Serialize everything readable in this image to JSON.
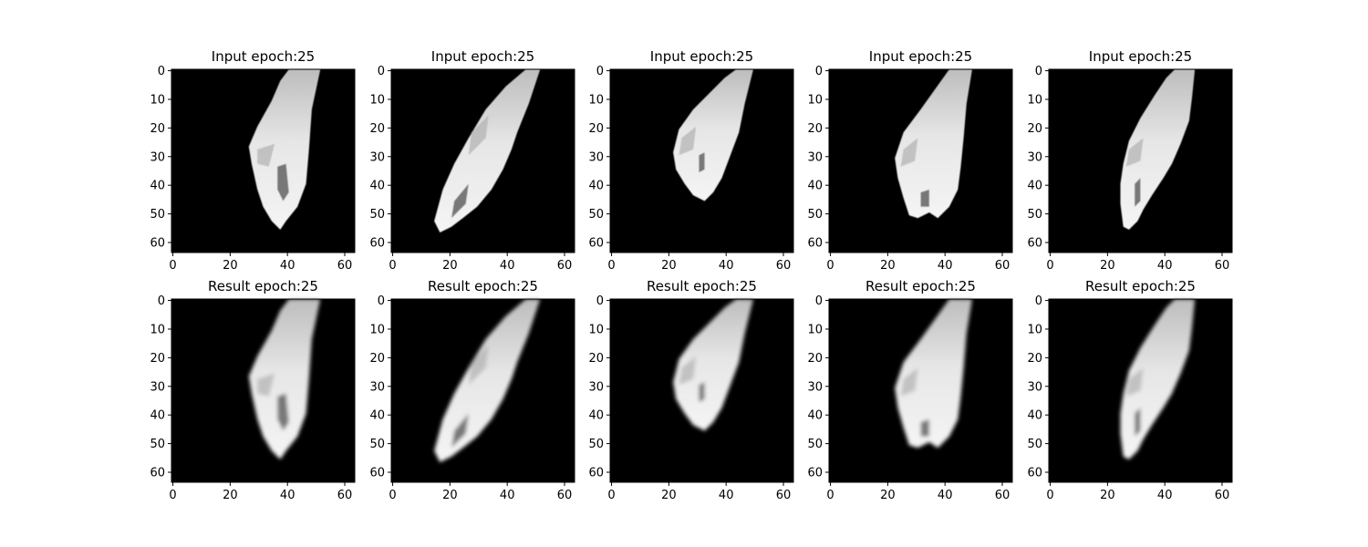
{
  "chart_data": [
    {
      "type": "image",
      "title": "Input epoch:25",
      "row": "input",
      "xlim": [
        0,
        63
      ],
      "ylim": [
        63,
        0
      ],
      "xticks": [
        0,
        20,
        40,
        60
      ],
      "yticks": [
        0,
        10,
        20,
        30,
        40,
        50,
        60
      ],
      "colormap": "gray",
      "subject": "hand"
    },
    {
      "type": "image",
      "title": "Input epoch:25",
      "row": "input",
      "xlim": [
        0,
        63
      ],
      "ylim": [
        63,
        0
      ],
      "xticks": [
        0,
        20,
        40,
        60
      ],
      "yticks": [
        0,
        10,
        20,
        30,
        40,
        50,
        60
      ],
      "colormap": "gray",
      "subject": "hand"
    },
    {
      "type": "image",
      "title": "Input epoch:25",
      "row": "input",
      "xlim": [
        0,
        63
      ],
      "ylim": [
        63,
        0
      ],
      "xticks": [
        0,
        20,
        40,
        60
      ],
      "yticks": [
        0,
        10,
        20,
        30,
        40,
        50,
        60
      ],
      "colormap": "gray",
      "subject": "hand"
    },
    {
      "type": "image",
      "title": "Input epoch:25",
      "row": "input",
      "xlim": [
        0,
        63
      ],
      "ylim": [
        63,
        0
      ],
      "xticks": [
        0,
        20,
        40,
        60
      ],
      "yticks": [
        0,
        10,
        20,
        30,
        40,
        50,
        60
      ],
      "colormap": "gray",
      "subject": "hand"
    },
    {
      "type": "image",
      "title": "Input epoch:25",
      "row": "input",
      "xlim": [
        0,
        63
      ],
      "ylim": [
        63,
        0
      ],
      "xticks": [
        0,
        20,
        40,
        60
      ],
      "yticks": [
        0,
        10,
        20,
        30,
        40,
        50,
        60
      ],
      "colormap": "gray",
      "subject": "hand"
    },
    {
      "type": "image",
      "title": "Result epoch:25",
      "row": "result",
      "xlim": [
        0,
        63
      ],
      "ylim": [
        63,
        0
      ],
      "xticks": [
        0,
        20,
        40,
        60
      ],
      "yticks": [
        0,
        10,
        20,
        30,
        40,
        50,
        60
      ],
      "colormap": "gray",
      "subject": "hand"
    },
    {
      "type": "image",
      "title": "Result epoch:25",
      "row": "result",
      "xlim": [
        0,
        63
      ],
      "ylim": [
        63,
        0
      ],
      "xticks": [
        0,
        20,
        40,
        60
      ],
      "yticks": [
        0,
        10,
        20,
        30,
        40,
        50,
        60
      ],
      "colormap": "gray",
      "subject": "hand"
    },
    {
      "type": "image",
      "title": "Result epoch:25",
      "row": "result",
      "xlim": [
        0,
        63
      ],
      "ylim": [
        63,
        0
      ],
      "xticks": [
        0,
        20,
        40,
        60
      ],
      "yticks": [
        0,
        10,
        20,
        30,
        40,
        50,
        60
      ],
      "colormap": "gray",
      "subject": "hand"
    },
    {
      "type": "image",
      "title": "Result epoch:25",
      "row": "result",
      "xlim": [
        0,
        63
      ],
      "ylim": [
        63,
        0
      ],
      "xticks": [
        0,
        20,
        40,
        60
      ],
      "yticks": [
        0,
        10,
        20,
        30,
        40,
        50,
        60
      ],
      "colormap": "gray",
      "subject": "hand"
    },
    {
      "type": "image",
      "title": "Result epoch:25",
      "row": "result",
      "xlim": [
        0,
        63
      ],
      "ylim": [
        63,
        0
      ],
      "xticks": [
        0,
        20,
        40,
        60
      ],
      "yticks": [
        0,
        10,
        20,
        30,
        40,
        50,
        60
      ],
      "colormap": "gray",
      "subject": "hand"
    }
  ]
}
